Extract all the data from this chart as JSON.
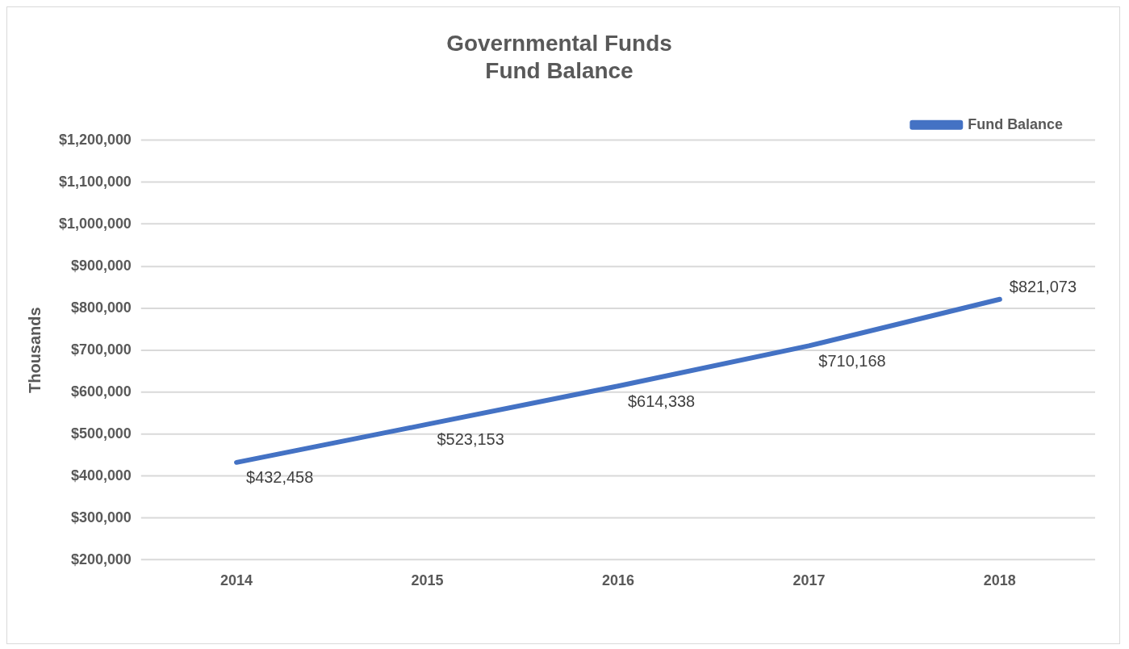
{
  "chart_data": {
    "type": "line",
    "title": "Governmental Funds\nFund Balance",
    "ylabel": "Thousands",
    "categories": [
      "2014",
      "2015",
      "2016",
      "2017",
      "2018"
    ],
    "series": [
      {
        "name": "Fund Balance",
        "color": "#4472c4",
        "values": [
          432458,
          523153,
          614338,
          710168,
          821073
        ],
        "value_labels": [
          "$432,458",
          "$523,153",
          "$614,338",
          "$710,168",
          "$821,073"
        ]
      }
    ],
    "ylim": [
      200000,
      1200000
    ],
    "yticks": [
      {
        "value": 200000,
        "label": "$200,000"
      },
      {
        "value": 300000,
        "label": "$300,000"
      },
      {
        "value": 400000,
        "label": "$400,000"
      },
      {
        "value": 500000,
        "label": "$500,000"
      },
      {
        "value": 600000,
        "label": "$600,000"
      },
      {
        "value": 700000,
        "label": "$700,000"
      },
      {
        "value": 800000,
        "label": "$800,000"
      },
      {
        "value": 900000,
        "label": "$900,000"
      },
      {
        "value": 1000000,
        "label": "$1,000,000"
      },
      {
        "value": 1100000,
        "label": "$1,100,000"
      },
      {
        "value": 1200000,
        "label": "$1,200,000"
      }
    ],
    "grid": "y",
    "legend": "top right",
    "marker": "none",
    "line_style": "solid"
  }
}
